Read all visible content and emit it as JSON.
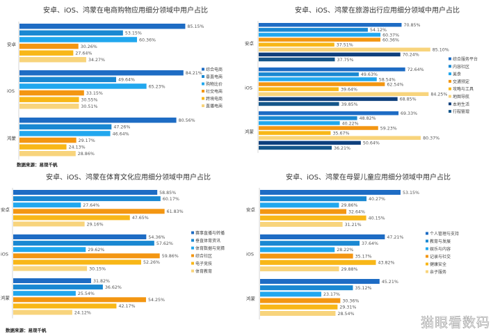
{
  "chart_data": [
    {
      "type": "bar",
      "orientation": "horizontal",
      "title": "安卓、iOS、鸿蒙在电商购物应用细分领域中用户占比",
      "categories": [
        "安卓",
        "iOS",
        "鸿蒙"
      ],
      "series": [
        {
          "name": "综合电商",
          "color": "#1e6cc4",
          "values": [
            85.15,
            84.21,
            80.56
          ]
        },
        {
          "name": "垂直电商",
          "color": "#1a88d2",
          "values": [
            53.15,
            49.64,
            47.26
          ]
        },
        {
          "name": "购物比价",
          "color": "#21a7ee",
          "values": [
            60.36,
            65.23,
            46.64
          ]
        },
        {
          "name": "社交电商",
          "color": "#f39612",
          "values": [
            30.26,
            33.15,
            29.17
          ]
        },
        {
          "name": "跨境电商",
          "color": "#f8b718",
          "values": [
            27.64,
            30.55,
            24.13
          ]
        },
        {
          "name": "直播电商",
          "color": "#f8d47c",
          "values": [
            34.27,
            30.51,
            28.86
          ]
        }
      ],
      "unit": "%",
      "legend": "right",
      "source": "数据来源：易观千帆"
    },
    {
      "type": "bar",
      "orientation": "horizontal",
      "title": "安卓、iOS、鸿蒙在旅游出行应用细分领域中用户占比",
      "categories": [
        "安卓",
        "iOS",
        "鸿蒙"
      ],
      "series": [
        {
          "name": "综合服务平台",
          "color": "#1e6cc4",
          "values": [
            70.85,
            72.64,
            69.33
          ]
        },
        {
          "name": "内容社区",
          "color": "#1a88d2",
          "values": [
            54.12,
            49.63,
            48.82
          ]
        },
        {
          "name": "美食",
          "color": "#21a7ee",
          "values": [
            60.37,
            58.54,
            40.22
          ]
        },
        {
          "name": "交通预定",
          "color": "#f39612",
          "values": [
            60.36,
            62.54,
            59.23
          ]
        },
        {
          "name": "攻略与工具",
          "color": "#f8b718",
          "values": [
            37.51,
            39.64,
            35.67
          ]
        },
        {
          "name": "地图导航",
          "color": "#f8d47c",
          "values": [
            85.1,
            84.25,
            80.37
          ]
        },
        {
          "name": "本地生活",
          "color": "#0f3f7c",
          "values": [
            70.24,
            68.85,
            50.64
          ]
        },
        {
          "name": "行程管理",
          "color": "#15568a",
          "values": [
            37.75,
            39.85,
            36.21
          ]
        }
      ],
      "unit": "%",
      "legend": "right"
    },
    {
      "type": "bar",
      "orientation": "horizontal",
      "title": "安卓、iOS、鸿蒙在体育文化应用细分领域中用户占比",
      "categories": [
        "安卓",
        "iOS",
        "鸿蒙"
      ],
      "series": [
        {
          "name": "赛事直播与转播",
          "color": "#1e6cc4",
          "values": [
            58.85,
            54.36,
            31.82
          ]
        },
        {
          "name": "垂直体育资讯",
          "color": "#1a88d2",
          "values": [
            60.17,
            57.62,
            36.62
          ]
        },
        {
          "name": "体育数据与竞猜",
          "color": "#21a7ee",
          "values": [
            27.64,
            29.62,
            25.54
          ]
        },
        {
          "name": "综合社区",
          "color": "#f39612",
          "values": [
            61.83,
            59.86,
            54.25
          ]
        },
        {
          "name": "电子竞技",
          "color": "#f8b718",
          "values": [
            47.65,
            52.26,
            42.17
          ]
        },
        {
          "name": "体育教育",
          "color": "#f8d47c",
          "values": [
            29.16,
            30.15,
            24.12
          ]
        }
      ],
      "unit": "%",
      "legend": "right",
      "source": "数据来源：易观千帆"
    },
    {
      "type": "bar",
      "orientation": "horizontal",
      "title": "安卓、iOS、鸿蒙在母婴儿童应用细分领域中用户占比",
      "categories": [
        "安卓",
        "iOS",
        "鸿蒙"
      ],
      "series": [
        {
          "name": "个人管理与支持",
          "color": "#1e6cc4",
          "values": [
            53.15,
            47.21,
            45.21
          ]
        },
        {
          "name": "教育与发展",
          "color": "#1a88d2",
          "values": [
            40.27,
            37.64,
            35.12
          ]
        },
        {
          "name": "娱乐与内容",
          "color": "#21a7ee",
          "values": [
            29.86,
            28.22,
            23.17
          ]
        },
        {
          "name": "记录与社交",
          "color": "#f39612",
          "values": [
            32.64,
            35.17,
            30.36
          ]
        },
        {
          "name": "健康安全",
          "color": "#f8b718",
          "values": [
            40.15,
            43.82,
            29.31
          ]
        },
        {
          "name": "亲子服务",
          "color": "#f8d47c",
          "values": [
            31.21,
            29.88,
            28.54
          ]
        }
      ],
      "unit": "%",
      "legend": "right"
    }
  ],
  "watermark": "猫眼看数码"
}
